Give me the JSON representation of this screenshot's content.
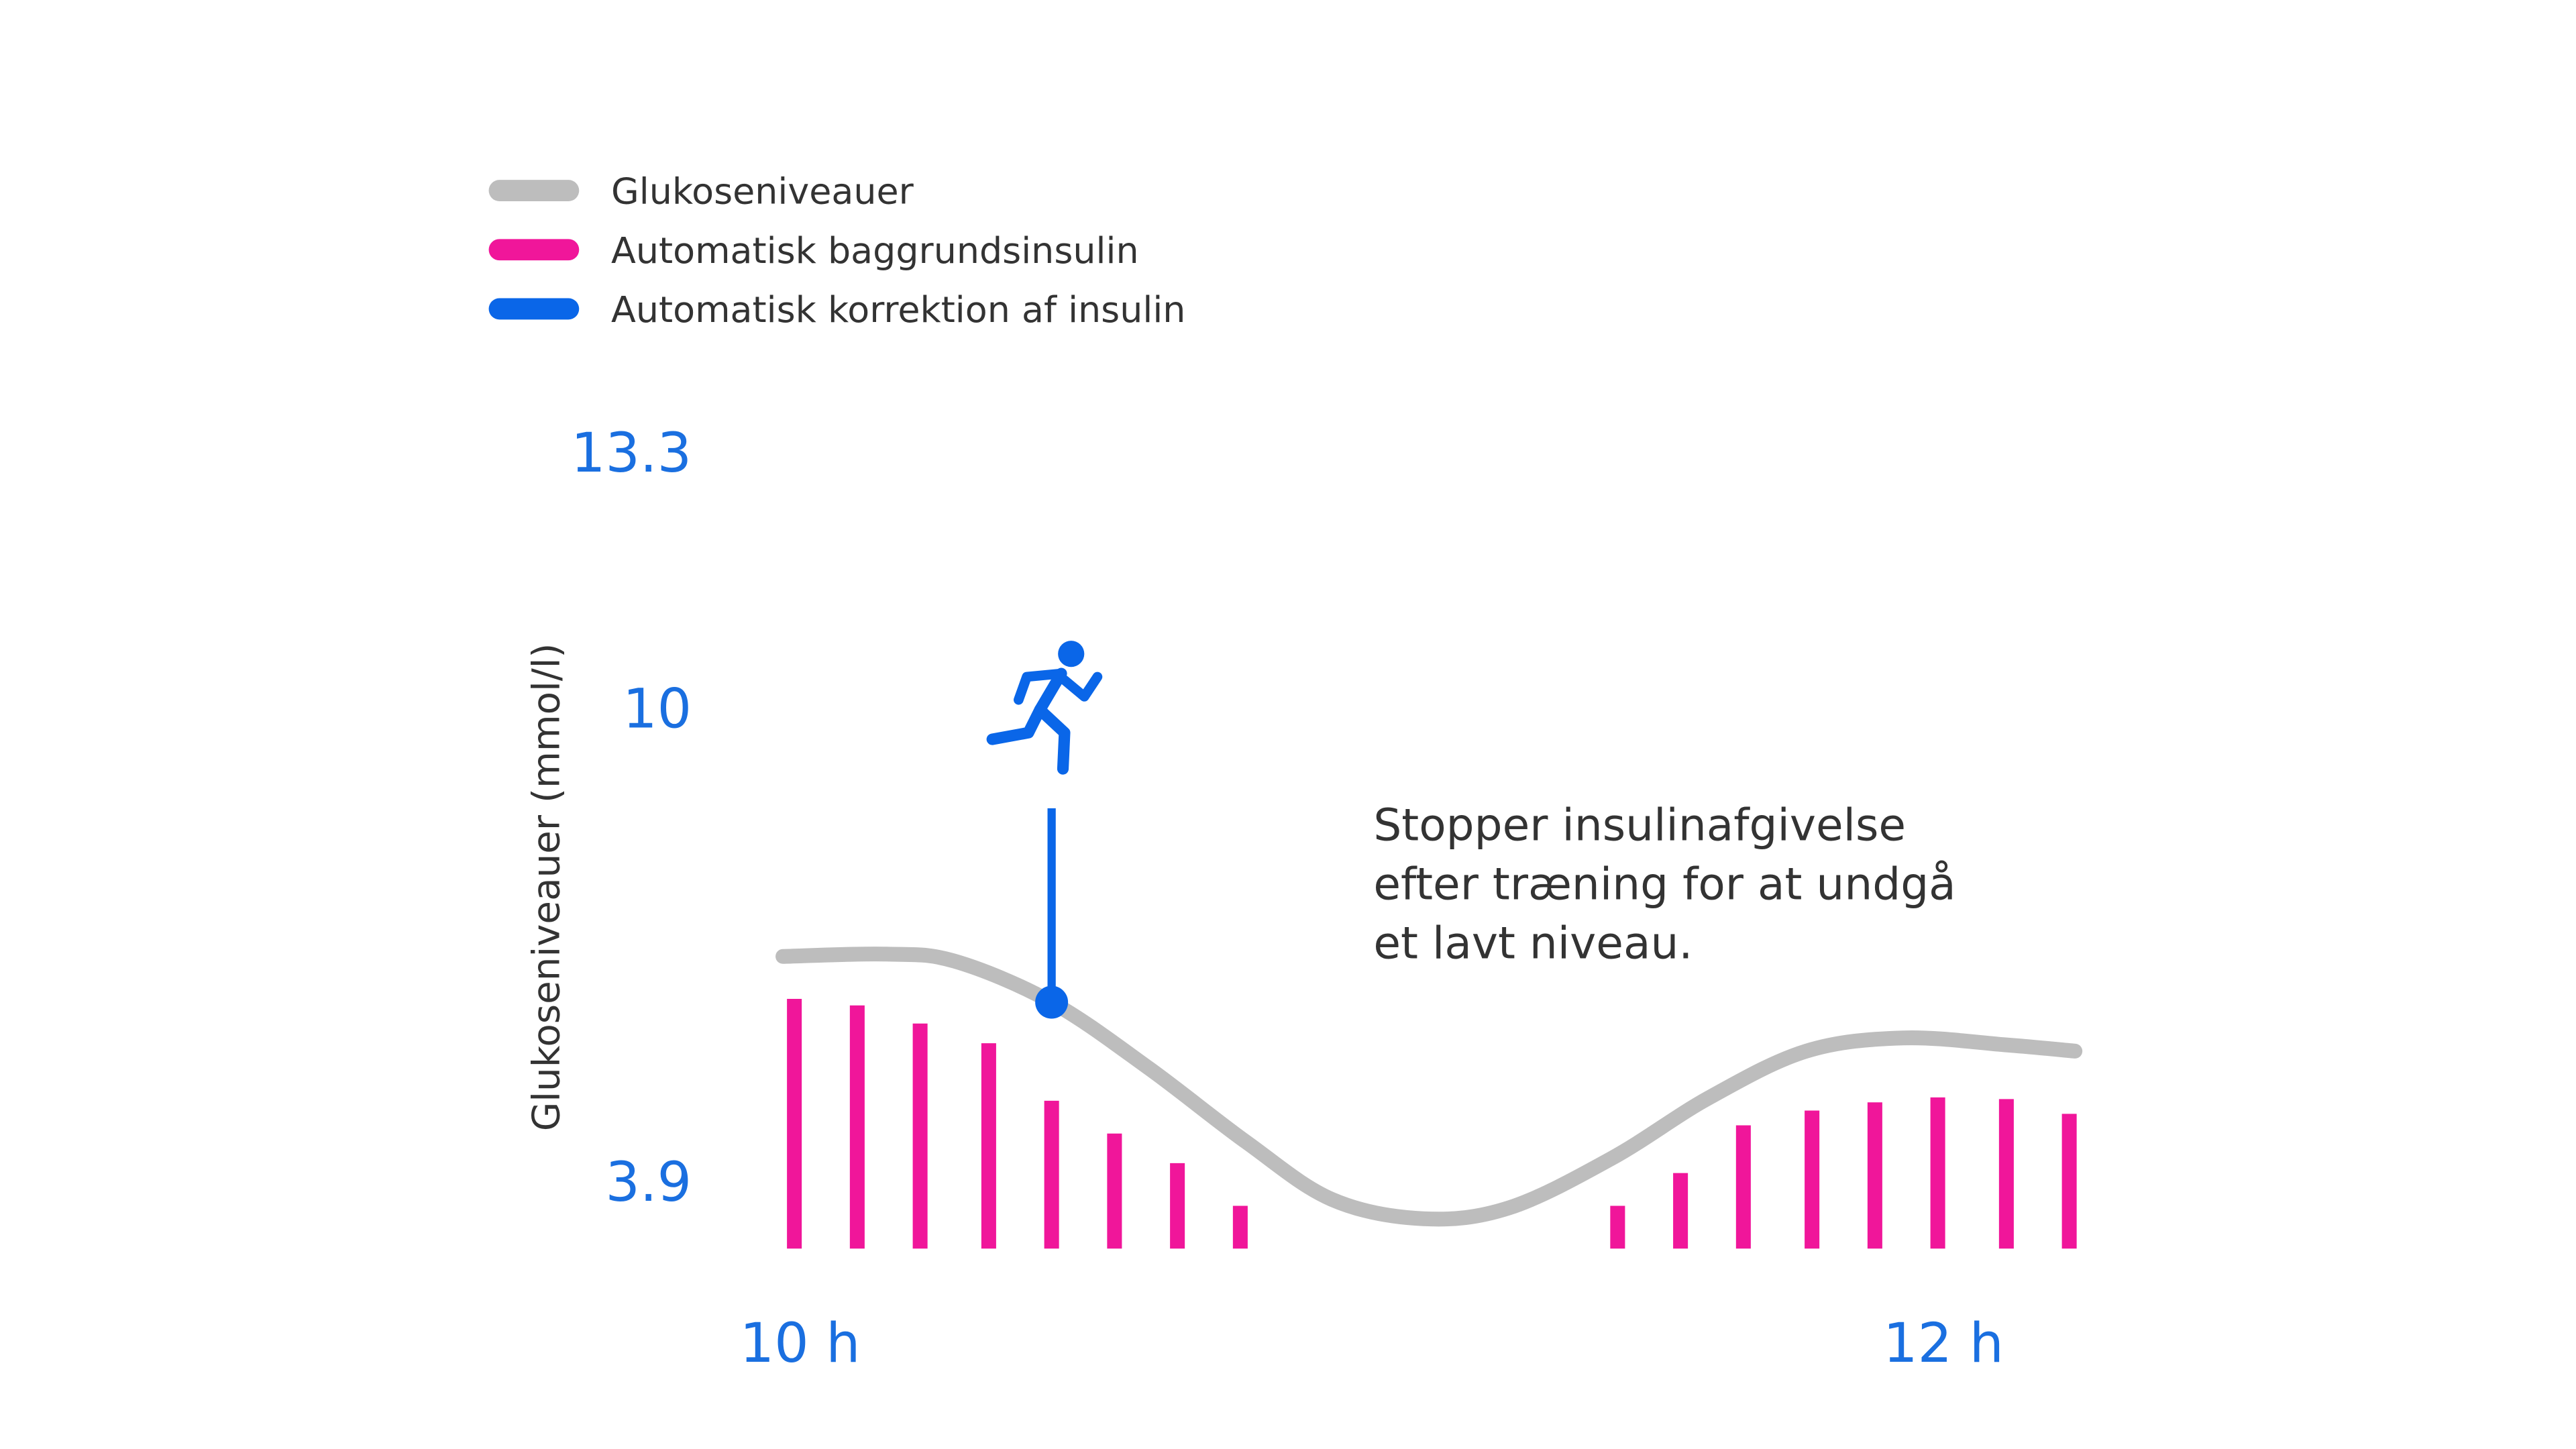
{
  "chart_data": {
    "type": "line",
    "y_label": "Glukoseniveauer (mmol/l)",
    "annotation": [
      "Stopper insulinafgivelse",
      "efter træning for at undgå",
      "et lavt niveau."
    ],
    "xlim": [
      9.5,
      12.5
    ],
    "xticks": [
      {
        "value": 10,
        "label": "10 h"
      },
      {
        "value": 12,
        "label": "12 h"
      }
    ],
    "ylim": [
      2.2,
      15
    ],
    "yticks": [
      3.9,
      10,
      13.3
    ],
    "y2lim": [
      0,
      160
    ],
    "series": [
      {
        "name": "Glukoseniveauer",
        "color": "#bdbdbd",
        "type": "line",
        "x": [
          9.97,
          10.15,
          10.27,
          10.44,
          10.61,
          10.78,
          10.93,
          11.09,
          11.24,
          11.42,
          11.59,
          11.76,
          11.93,
          12.11,
          12.23
        ],
        "values": [
          6.86,
          6.89,
          6.8,
          6.27,
          5.42,
          4.47,
          3.73,
          3.48,
          3.62,
          4.26,
          5.04,
          5.64,
          5.81,
          5.72,
          5.64
        ]
      },
      {
        "name": "Automatisk baggrundsinsulin",
        "color": "#f0169a",
        "type": "bar",
        "axis": "y2",
        "x": [
          9.99,
          10.1,
          10.21,
          10.33,
          10.44,
          10.55,
          10.66,
          10.77,
          11.43,
          11.54,
          11.65,
          11.77,
          11.88,
          11.99,
          12.11,
          12.22
        ],
        "values": [
          152,
          148,
          137,
          125,
          90,
          70,
          52,
          26,
          26,
          46,
          75,
          84,
          89,
          92,
          91,
          82
        ]
      },
      {
        "name": "Automatisk korrektion af insulin",
        "color": "#0a66e8",
        "type": "stem",
        "x": [
          10.44
        ],
        "from": [
          6.27
        ],
        "values": [
          8.77
        ]
      }
    ]
  }
}
